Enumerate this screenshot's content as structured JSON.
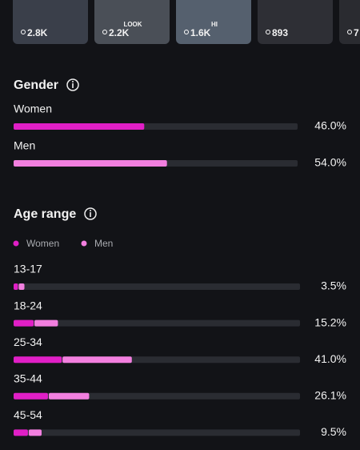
{
  "thumbnails": [
    {
      "count": "2.8K"
    },
    {
      "count": "2.2K",
      "caption": "LOOK"
    },
    {
      "count": "1.6K",
      "caption": "HI"
    },
    {
      "count": "893"
    },
    {
      "count": "7"
    }
  ],
  "gender": {
    "title": "Gender",
    "colors": {
      "track": "#2a2c32"
    },
    "rows": [
      {
        "label": "Women",
        "value": 46.0,
        "value_label": "46.0%",
        "color": "#e01fc6"
      },
      {
        "label": "Men",
        "value": 54.0,
        "value_label": "54.0%",
        "color": "#f27fdf"
      }
    ]
  },
  "age_range": {
    "title": "Age range",
    "legend": [
      {
        "name": "Women",
        "color": "#e01fc6"
      },
      {
        "name": "Men",
        "color": "#f27fdf"
      }
    ],
    "rows": [
      {
        "label": "13-17",
        "women": 1.5,
        "men": 2.0,
        "total_label": "3.5%"
      },
      {
        "label": "18-24",
        "women": 7.0,
        "men": 8.2,
        "total_label": "15.2%"
      },
      {
        "label": "25-34",
        "women": 16.8,
        "men": 24.2,
        "total_label": "41.0%"
      },
      {
        "label": "35-44",
        "women": 12.0,
        "men": 14.1,
        "total_label": "26.1%"
      },
      {
        "label": "45-54",
        "women": 5.0,
        "men": 4.5,
        "total_label": "9.5%"
      }
    ]
  }
}
